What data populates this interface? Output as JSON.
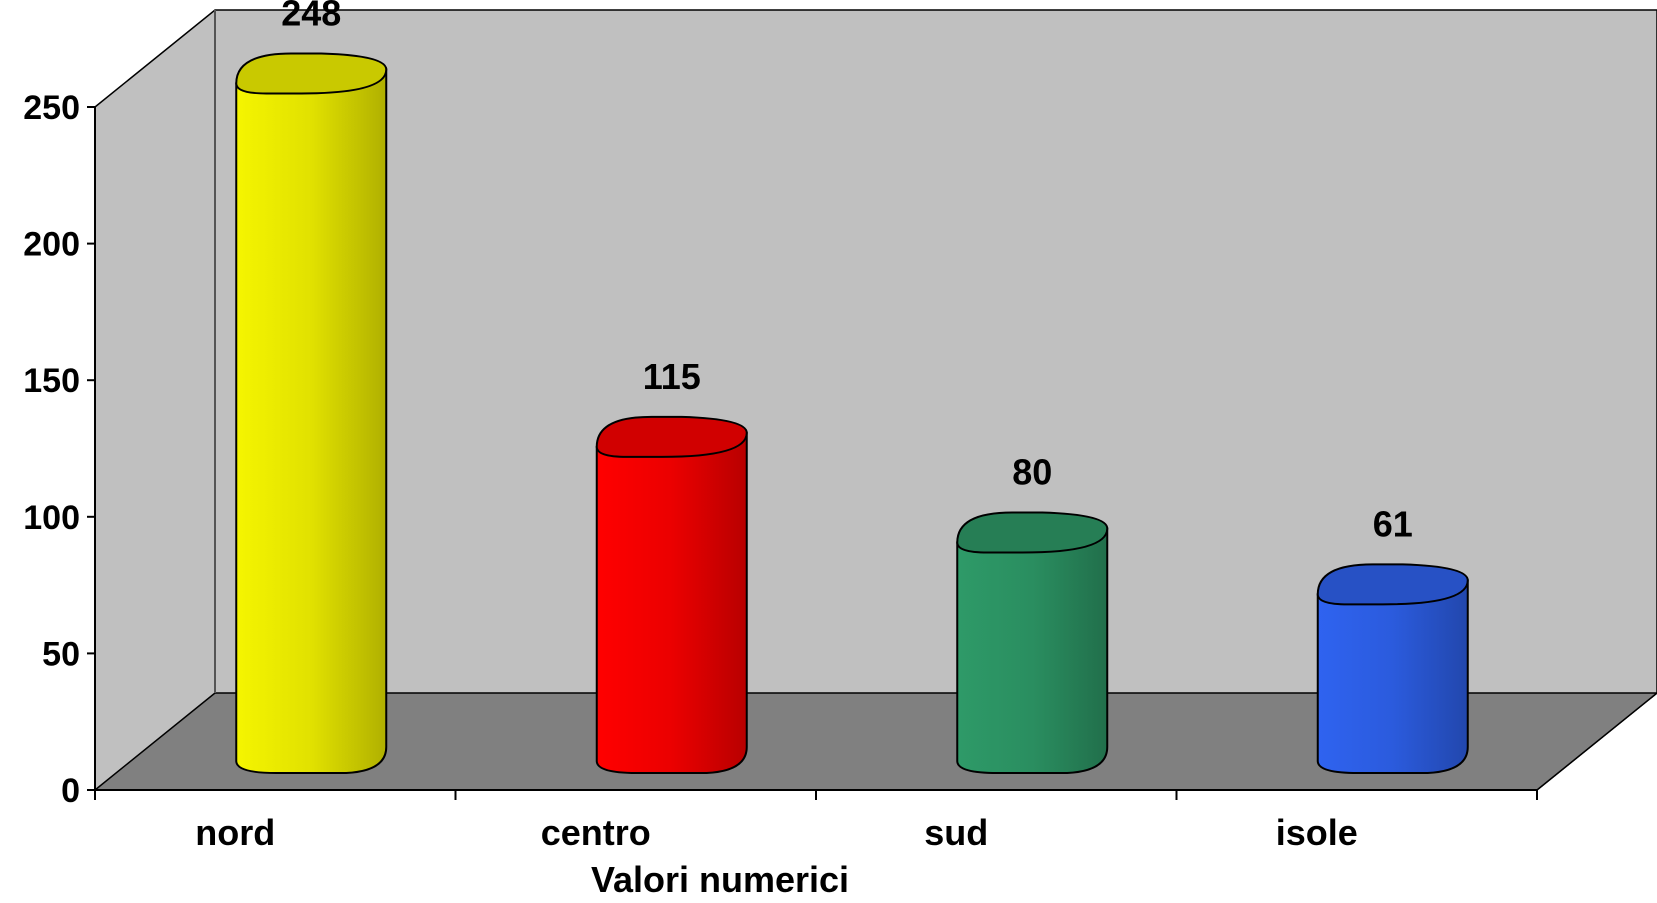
{
  "chart_data": {
    "type": "bar",
    "style": "3d-cylinder",
    "categories": [
      "nord",
      "centro",
      "sud",
      "isole"
    ],
    "values": [
      248,
      115,
      80,
      61
    ],
    "colors": [
      "#F5F500",
      "#FF0000",
      "#2E9A68",
      "#2F63F0"
    ],
    "title": "",
    "xlabel": "Valori numerici",
    "ylabel": "",
    "ylim": [
      0,
      250
    ],
    "yticks": [
      "0",
      "50",
      "100",
      "150",
      "200",
      "250"
    ],
    "data_labels": [
      "248",
      "115",
      "80",
      "61"
    ],
    "grid": false,
    "legend": "none",
    "wall_color": "#C0C0C0",
    "floor_color": "#808080"
  }
}
